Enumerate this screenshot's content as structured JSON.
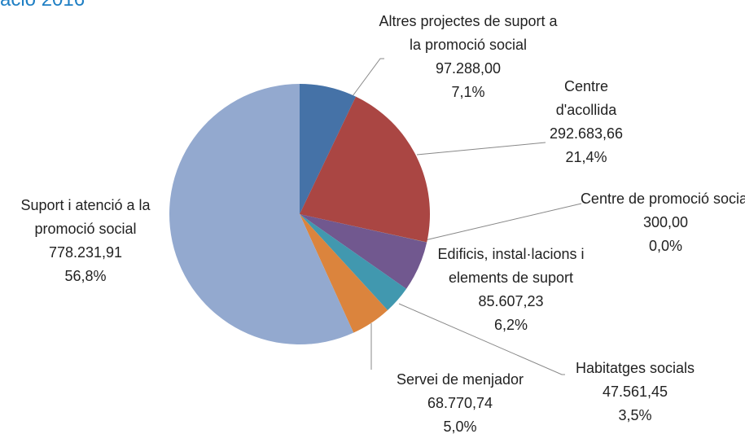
{
  "chart_data": {
    "type": "pie",
    "title": "ació 2016",
    "categories": [
      "Altres projectes de suport  a la promoció social",
      "Centre d'acollida",
      "Centre de promoció social",
      "Edificis, instal·lacions i elements de suport",
      "Habitatges socials",
      "Servei de menjador",
      "Suport i atenció a la promoció social"
    ],
    "values": [
      97288.0,
      292683.66,
      300.0,
      85607.23,
      47561.45,
      68770.74,
      778231.91
    ],
    "value_labels": [
      "97.288,00",
      "292.683,66",
      "300,00",
      "85.607,23",
      "47.561,45",
      "68.770,74",
      "778.231,91"
    ],
    "percent_labels": [
      "7,1%",
      "21,4%",
      "0,0%",
      "6,2%",
      "3,5%",
      "5,0%",
      "56,8%"
    ],
    "colors": [
      "#4572a7",
      "#aa4643",
      "#89a54e",
      "#71588f",
      "#4198af",
      "#db843d",
      "#93a9cf"
    ]
  }
}
